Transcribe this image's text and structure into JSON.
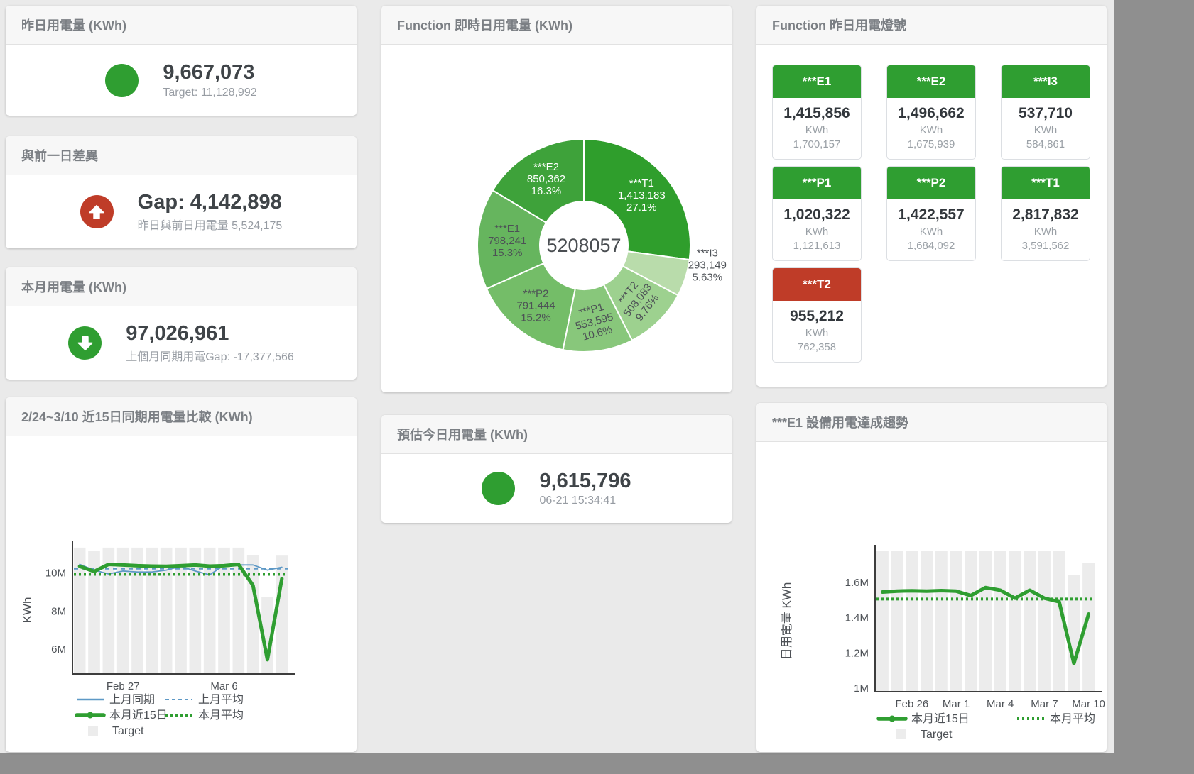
{
  "colors": {
    "green": "#2f9e31",
    "red": "#bf3c28",
    "target_gray": "#ececec",
    "blue": "#5e99c6"
  },
  "cards": {
    "yesterday": {
      "title": "昨日用電量 (KWh)",
      "value": "9,667,073",
      "subtitle": "Target: 11,128,992",
      "icon": "status-circle",
      "icon_color": "#2f9e31"
    },
    "gap": {
      "title": "與前一日差異",
      "value": "Gap: 4,142,898",
      "subtitle": "昨日與前日用電量 5,524,175",
      "icon": "arrow-up",
      "icon_color": "#bf3c28"
    },
    "month": {
      "title": "本月用電量 (KWh)",
      "value": "97,026,961",
      "subtitle": "上個月同期用電Gap: -17,377,566",
      "icon": "arrow-down",
      "icon_color": "#2f9e31"
    },
    "estimate": {
      "title": "預估今日用電量 (KWh)",
      "value": "9,615,796",
      "subtitle": "06-21 15:34:41",
      "icon": "status-circle",
      "icon_color": "#2f9e31"
    },
    "donut": {
      "title": "Function 即時日用電量 (KWh)"
    },
    "lights": {
      "title": "Function 昨日用電燈號",
      "tiles": [
        {
          "label": "***E1",
          "value": "1,415,856",
          "unit": "KWh",
          "target": "1,700,157",
          "status_color": "#2f9e31"
        },
        {
          "label": "***E2",
          "value": "1,496,662",
          "unit": "KWh",
          "target": "1,675,939",
          "status_color": "#2f9e31"
        },
        {
          "label": "***I3",
          "value": "537,710",
          "unit": "KWh",
          "target": "584,861",
          "status_color": "#2f9e31"
        },
        {
          "label": "***P1",
          "value": "1,020,322",
          "unit": "KWh",
          "target": "1,121,613",
          "status_color": "#2f9e31"
        },
        {
          "label": "***P2",
          "value": "1,422,557",
          "unit": "KWh",
          "target": "1,684,092",
          "status_color": "#2f9e31"
        },
        {
          "label": "***T1",
          "value": "2,817,832",
          "unit": "KWh",
          "target": "3,591,562",
          "status_color": "#2f9e31"
        },
        {
          "label": "***T2",
          "value": "955,212",
          "unit": "KWh",
          "target": "762,358",
          "status_color": "#bf3c28"
        }
      ]
    },
    "compare": {
      "title": "2/24~3/10 近15日同期用電量比較 (KWh)"
    },
    "e1trend": {
      "title": "***E1 設備用電達成趨勢"
    }
  },
  "chart_data": [
    {
      "id": "realtime_donut",
      "type": "pie",
      "title": "Function 即時日用電量 (KWh)",
      "center_label": "5208057",
      "segments": [
        {
          "name": "***T1",
          "value": 1413183,
          "value_label": "1,413,183",
          "pct": "27.1%",
          "color": "#2f9e2c",
          "label_color": "#ffffff"
        },
        {
          "name": "***I3",
          "value": 293149,
          "value_label": "293,149",
          "pct": "5.63%",
          "color": "#b9dcab",
          "label_color": "#4d5156",
          "outside": true,
          "label_angle": 99,
          "label_r": 176
        },
        {
          "name": "***T2",
          "value": 508083,
          "value_label": "508,083",
          "pct": "9.76%",
          "color": "#9dd18f",
          "label_color": "#4d5156",
          "rotate": -52
        },
        {
          "name": "***P1",
          "value": 553595,
          "value_label": "553,595",
          "pct": "10.6%",
          "color": "#88c77b",
          "label_color": "#4d5156",
          "rotate": -15
        },
        {
          "name": "***P2",
          "value": 791444,
          "value_label": "791,444",
          "pct": "15.2%",
          "color": "#74bd68",
          "label_color": "#4d5156"
        },
        {
          "name": "***E1",
          "value": 798241,
          "value_label": "798,241",
          "pct": "15.3%",
          "color": "#66b55e",
          "label_color": "#4d5156"
        },
        {
          "name": "***E2",
          "value": 850362,
          "value_label": "850,362",
          "pct": "16.3%",
          "color": "#3ea23a",
          "label_color": "#ffffff"
        }
      ]
    },
    {
      "id": "compare15",
      "type": "line",
      "title": "2/24~3/10 近15日同期用電量比較 (KWh)",
      "unit": "M KWh",
      "ylabel": "KWh",
      "ylim": [
        4.7,
        11.4
      ],
      "yticks": [
        {
          "v": 6,
          "label": "6M"
        },
        {
          "v": 8,
          "label": "8M"
        },
        {
          "v": 10,
          "label": "10M"
        }
      ],
      "categories": [
        "2/24",
        "2/25",
        "2/26",
        "2/27",
        "2/28",
        "3/1",
        "3/2",
        "3/3",
        "3/4",
        "3/5",
        "3/6",
        "3/7",
        "3/8",
        "3/9",
        "3/10"
      ],
      "xticks": [
        {
          "i": 3,
          "label": "Feb 27"
        },
        {
          "i": 10,
          "label": "Mar 6"
        }
      ],
      "bar_color": "#ececec",
      "target_bars": [
        11.33,
        11.16,
        11.33,
        11.33,
        11.33,
        11.33,
        11.33,
        11.33,
        11.33,
        11.33,
        11.33,
        11.33,
        10.93,
        8.72,
        10.91
      ],
      "series": [
        {
          "name": "上月同期",
          "style": "solid",
          "color": "#5e99c6",
          "width": 1.8,
          "values": [
            10.45,
            10.15,
            9.95,
            10.1,
            10.05,
            10.05,
            10.15,
            10.35,
            10.1,
            9.9,
            10.4,
            10.42,
            10.42,
            10.15,
            10.3
          ]
        },
        {
          "name": "上月平均",
          "style": "dashed",
          "color": "#5e99c6",
          "width": 2,
          "dash": "6,5",
          "const": 10.22
        },
        {
          "name": "本月近15日",
          "style": "thick",
          "color": "#2f9e31",
          "width": 5,
          "values": [
            10.35,
            10.08,
            10.45,
            10.42,
            10.38,
            10.36,
            10.35,
            10.38,
            10.42,
            10.36,
            10.38,
            10.45,
            9.35,
            5.45,
            9.7
          ]
        },
        {
          "name": "本月平均",
          "style": "dots",
          "color": "#2f9e31",
          "width": 4,
          "dash": "3,4",
          "const": 9.93
        }
      ],
      "legend_rows": [
        [
          {
            "label": "上月同期",
            "marker": "line",
            "color": "#5e99c6"
          },
          {
            "label": "上月平均",
            "marker": "dash",
            "color": "#5e99c6"
          }
        ],
        [
          {
            "label": "本月近15日",
            "marker": "thick",
            "color": "#2f9e31"
          },
          {
            "label": "本月平均",
            "marker": "dots",
            "color": "#2f9e31"
          }
        ],
        [
          {
            "label": "Target",
            "marker": "square",
            "color": "#ececec"
          }
        ]
      ]
    },
    {
      "id": "e1_trend",
      "type": "line",
      "title": "***E1 設備用電達成趨勢",
      "unit": "M KWh",
      "ylabel": "日用電量 KWh",
      "ylim": [
        0.98,
        1.78
      ],
      "yticks": [
        {
          "v": 1.0,
          "label": "1M"
        },
        {
          "v": 1.2,
          "label": "1.2M"
        },
        {
          "v": 1.4,
          "label": "1.4M"
        },
        {
          "v": 1.6,
          "label": "1.6M"
        }
      ],
      "categories": [
        "2/24",
        "2/25",
        "2/26",
        "2/27",
        "2/28",
        "3/1",
        "3/2",
        "3/3",
        "3/4",
        "3/5",
        "3/6",
        "3/7",
        "3/8",
        "3/9",
        "3/10"
      ],
      "xticks": [
        {
          "i": 2,
          "label": "Feb 26"
        },
        {
          "i": 5,
          "label": "Mar 1"
        },
        {
          "i": 8,
          "label": "Mar 4"
        },
        {
          "i": 11,
          "label": "Mar 7"
        },
        {
          "i": 14,
          "label": "Mar 10"
        }
      ],
      "bar_color": "#ececec",
      "target_bars": [
        1.78,
        1.78,
        1.78,
        1.78,
        1.78,
        1.78,
        1.78,
        1.78,
        1.78,
        1.78,
        1.78,
        1.78,
        1.78,
        1.64,
        1.71
      ],
      "series": [
        {
          "name": "本月近15日",
          "style": "thick",
          "color": "#2f9e31",
          "width": 5,
          "values": [
            1.545,
            1.55,
            1.552,
            1.55,
            1.553,
            1.55,
            1.525,
            1.57,
            1.555,
            1.51,
            1.555,
            1.51,
            1.49,
            1.14,
            1.42
          ]
        },
        {
          "name": "本月平均",
          "style": "dots",
          "color": "#2f9e31",
          "width": 4,
          "dash": "3,4",
          "const": 1.505
        }
      ],
      "legend_rows": [
        [
          {
            "label": "本月近15日",
            "marker": "thick",
            "color": "#2f9e31"
          },
          {
            "label": "本月平均",
            "marker": "dots",
            "color": "#2f9e31"
          }
        ],
        [
          {
            "label": "Target",
            "marker": "square",
            "color": "#ececec"
          }
        ]
      ]
    }
  ]
}
